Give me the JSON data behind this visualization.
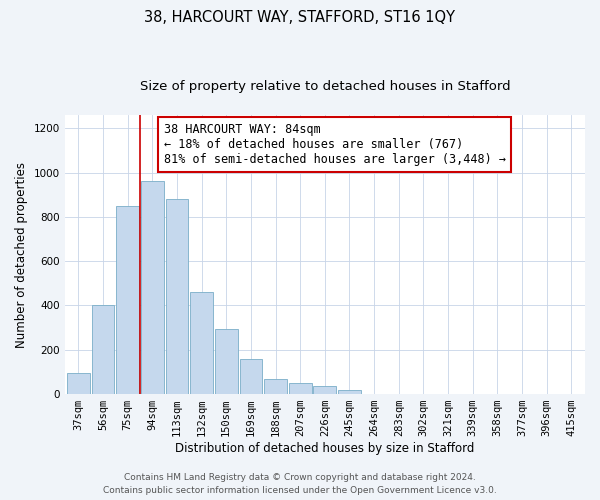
{
  "title": "38, HARCOURT WAY, STAFFORD, ST16 1QY",
  "subtitle": "Size of property relative to detached houses in Stafford",
  "xlabel": "Distribution of detached houses by size in Stafford",
  "ylabel": "Number of detached properties",
  "bar_labels": [
    "37sqm",
    "56sqm",
    "75sqm",
    "94sqm",
    "113sqm",
    "132sqm",
    "150sqm",
    "169sqm",
    "188sqm",
    "207sqm",
    "226sqm",
    "245sqm",
    "264sqm",
    "283sqm",
    "302sqm",
    "321sqm",
    "339sqm",
    "358sqm",
    "377sqm",
    "396sqm",
    "415sqm"
  ],
  "bar_values": [
    95,
    400,
    848,
    960,
    880,
    460,
    295,
    160,
    70,
    50,
    35,
    20,
    0,
    0,
    0,
    0,
    0,
    0,
    0,
    0,
    0
  ],
  "bar_color": "#c5d8ed",
  "bar_edgecolor": "#7aaec8",
  "vline_x": 2.5,
  "vline_color": "#cc0000",
  "annotation_title": "38 HARCOURT WAY: 84sqm",
  "annotation_line1": "← 18% of detached houses are smaller (767)",
  "annotation_line2": "81% of semi-detached houses are larger (3,448) →",
  "annotation_box_color": "#ffffff",
  "annotation_box_edgecolor": "#cc0000",
  "ylim": [
    0,
    1260
  ],
  "yticks": [
    0,
    200,
    400,
    600,
    800,
    1000,
    1200
  ],
  "bg_color": "#f0f4f9",
  "plot_bg_color": "#ffffff",
  "footer1": "Contains HM Land Registry data © Crown copyright and database right 2024.",
  "footer2": "Contains public sector information licensed under the Open Government Licence v3.0.",
  "title_fontsize": 10.5,
  "subtitle_fontsize": 9.5,
  "axis_label_fontsize": 8.5,
  "tick_fontsize": 7.5,
  "annotation_fontsize": 8.5,
  "footer_fontsize": 6.5
}
